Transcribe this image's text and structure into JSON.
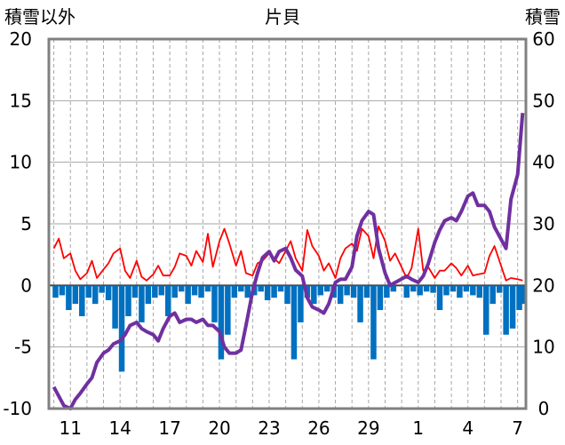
{
  "chart_data": {
    "type": "line",
    "title": "片貝",
    "left_axis_label": "積雪以外",
    "right_axis_label": "積雪",
    "left_ylim": [
      -10,
      20
    ],
    "left_yticks": [
      -10,
      -5,
      0,
      5,
      10,
      15,
      20
    ],
    "right_ylim": [
      0,
      60
    ],
    "right_yticks": [
      0,
      10,
      20,
      30,
      40,
      50,
      60
    ],
    "x_tick_labels": [
      "11",
      "14",
      "17",
      "20",
      "23",
      "26",
      "29",
      "1",
      "4",
      "7"
    ],
    "grid": "vertical-dashed-daily, horizontal-solid",
    "colors": {
      "temperature": "#ff0000",
      "snow_depth": "#7030a0",
      "bars": "#0070c0",
      "grid": "#a6a6a6",
      "axes": "#808080"
    },
    "series": [
      {
        "axis": "left",
        "style": "line",
        "color": "#ff0000",
        "x": [
          10.0,
          10.3,
          10.6,
          11.0,
          11.3,
          11.6,
          12.0,
          12.3,
          12.6,
          13.0,
          13.3,
          13.6,
          14.0,
          14.3,
          14.6,
          15.0,
          15.3,
          15.6,
          16.0,
          16.3,
          16.6,
          17.0,
          17.3,
          17.6,
          18.0,
          18.3,
          18.6,
          19.0,
          19.3,
          19.6,
          20.0,
          20.3,
          20.6,
          21.0,
          21.3,
          21.6,
          22.0,
          22.3,
          22.6,
          23.0,
          23.3,
          23.6,
          24.0,
          24.3,
          24.6,
          25.0,
          25.3,
          25.6,
          26.0,
          26.3,
          26.6,
          27.0,
          27.3,
          27.6,
          28.0,
          28.3,
          28.6,
          29.0,
          29.3,
          29.6,
          30.0,
          30.3,
          30.6,
          31.3,
          31.6,
          32.0,
          32.3,
          32.6,
          33.0,
          33.3,
          33.6,
          34.0,
          34.3,
          34.6,
          35.0,
          35.3,
          35.6,
          36.0,
          36.3,
          36.6,
          37.0,
          37.3,
          37.6,
          38.0,
          38.3
        ],
        "y": [
          3.0,
          3.8,
          2.2,
          2.6,
          1.2,
          0.5,
          1.0,
          2.0,
          0.6,
          1.3,
          1.8,
          2.6,
          3.0,
          1.2,
          0.6,
          2.0,
          0.7,
          0.4,
          0.9,
          1.6,
          0.8,
          0.8,
          1.5,
          2.6,
          2.4,
          1.6,
          2.8,
          1.9,
          4.2,
          1.5,
          3.6,
          4.6,
          3.4,
          1.6,
          2.8,
          1.0,
          0.8,
          1.8,
          2.0,
          2.6,
          2.2,
          1.8,
          2.8,
          3.6,
          2.2,
          1.2,
          4.5,
          3.2,
          2.4,
          1.2,
          1.8,
          0.6,
          2.2,
          3.0,
          3.4,
          2.8,
          4.6,
          4.0,
          2.2,
          4.8,
          3.6,
          2.0,
          2.6,
          0.6,
          1.4,
          4.6,
          1.2,
          1.5,
          0.6,
          1.2,
          1.2,
          1.8,
          1.4,
          0.8,
          1.6,
          0.8,
          0.9,
          1.0,
          2.4,
          3.2,
          1.6,
          0.4,
          0.6,
          0.5,
          0.4
        ]
      },
      {
        "axis": "right",
        "style": "line",
        "color": "#7030a0",
        "x": [
          10.0,
          10.3,
          10.6,
          11.0,
          11.3,
          11.6,
          12.0,
          12.3,
          12.6,
          13.0,
          13.3,
          13.6,
          14.0,
          14.3,
          14.6,
          15.0,
          15.3,
          15.6,
          16.0,
          16.3,
          16.6,
          17.0,
          17.3,
          17.6,
          18.0,
          18.3,
          18.6,
          19.0,
          19.3,
          19.6,
          20.0,
          20.3,
          20.6,
          21.0,
          21.3,
          21.6,
          22.0,
          22.3,
          22.6,
          23.0,
          23.3,
          23.6,
          24.0,
          24.3,
          24.6,
          25.0,
          25.3,
          25.6,
          26.0,
          26.3,
          26.6,
          27.0,
          27.3,
          27.6,
          28.0,
          28.3,
          28.6,
          29.0,
          29.3,
          29.6,
          30.0,
          30.3,
          31.3,
          31.6,
          32.0,
          32.3,
          32.6,
          33.0,
          33.3,
          33.6,
          34.0,
          34.3,
          34.6,
          35.0,
          35.3,
          35.6,
          36.0,
          36.3,
          36.6,
          37.0,
          37.3,
          37.6,
          38.0,
          38.3
        ],
        "y": [
          3.5,
          2.0,
          0.5,
          0.0,
          1.5,
          2.5,
          4.0,
          5.0,
          7.5,
          9.0,
          9.5,
          10.5,
          11.0,
          12.0,
          13.5,
          14.0,
          13.0,
          12.5,
          12.0,
          11.0,
          13.0,
          15.0,
          15.5,
          14.0,
          14.5,
          14.5,
          14.0,
          14.5,
          13.5,
          13.5,
          12.5,
          10.0,
          9.0,
          9.0,
          9.5,
          13.5,
          19.0,
          22.0,
          24.5,
          25.5,
          24.0,
          25.5,
          26.0,
          24.5,
          22.5,
          21.5,
          18.0,
          16.5,
          16.0,
          15.5,
          17.0,
          20.5,
          21.0,
          21.0,
          23.0,
          28.0,
          30.5,
          32.0,
          31.5,
          26.0,
          22.0,
          20.0,
          21.5,
          21.0,
          20.5,
          21.5,
          23.5,
          27.0,
          29.0,
          30.5,
          31.0,
          30.5,
          32.0,
          34.5,
          35.0,
          33.0,
          33.0,
          32.0,
          29.5,
          27.5,
          26.0,
          34.0,
          38.0,
          48.0
        ]
      },
      {
        "axis": "left",
        "style": "bars",
        "color": "#0070c0",
        "x": [
          10.1,
          10.5,
          10.9,
          11.3,
          11.7,
          12.1,
          12.5,
          12.9,
          13.3,
          13.7,
          14.1,
          14.5,
          14.9,
          15.3,
          15.7,
          16.1,
          16.5,
          16.9,
          17.3,
          17.7,
          18.1,
          18.5,
          18.9,
          19.3,
          19.7,
          20.1,
          20.5,
          20.9,
          21.3,
          21.7,
          22.1,
          22.5,
          22.9,
          23.3,
          23.7,
          24.1,
          24.5,
          24.9,
          25.3,
          25.7,
          26.1,
          26.5,
          26.9,
          27.3,
          27.7,
          28.1,
          28.5,
          28.9,
          29.3,
          29.7,
          30.1,
          30.5,
          31.3,
          31.7,
          32.1,
          32.5,
          32.9,
          33.3,
          33.7,
          34.1,
          34.5,
          34.9,
          35.3,
          35.7,
          36.1,
          36.5,
          36.9,
          37.3,
          37.7,
          38.1,
          38.3
        ],
        "y": [
          -1.0,
          -0.8,
          -2.0,
          -1.5,
          -2.5,
          -1.0,
          -1.5,
          -0.6,
          -1.2,
          -3.5,
          -7.0,
          -2.5,
          -1.0,
          -3.0,
          -1.5,
          -1.0,
          -0.8,
          -2.5,
          -1.0,
          -0.5,
          -1.5,
          -0.8,
          -1.0,
          -0.5,
          -3.0,
          -6.0,
          -4.0,
          -1.0,
          -0.5,
          -1.0,
          -0.8,
          -0.5,
          -1.2,
          -1.0,
          -0.5,
          -1.5,
          -6.0,
          -3.0,
          -1.0,
          -1.5,
          -0.8,
          -0.5,
          -1.0,
          -1.5,
          -0.8,
          -1.0,
          -3.0,
          -1.0,
          -6.0,
          -2.0,
          -1.0,
          -0.5,
          -1.0,
          -0.5,
          -0.8,
          -0.5,
          -0.6,
          -2.0,
          -0.8,
          -0.5,
          -1.0,
          -0.5,
          -0.8,
          -1.0,
          -4.0,
          -1.5,
          -0.6,
          -4.0,
          -3.5,
          -2.0,
          -1.5
        ]
      }
    ]
  }
}
